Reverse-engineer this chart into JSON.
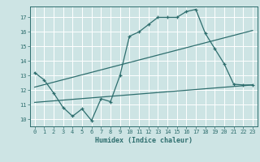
{
  "bg_color": "#cde4e4",
  "grid_color": "#ffffff",
  "line_color": "#2e6e6e",
  "xlabel": "Humidex (Indice chaleur)",
  "xlim": [
    -0.5,
    23.5
  ],
  "ylim": [
    9.5,
    17.75
  ],
  "yticks": [
    10,
    11,
    12,
    13,
    14,
    15,
    16,
    17
  ],
  "xticks": [
    0,
    1,
    2,
    3,
    4,
    5,
    6,
    7,
    8,
    9,
    10,
    11,
    12,
    13,
    14,
    15,
    16,
    17,
    18,
    19,
    20,
    21,
    22,
    23
  ],
  "curve1_x": [
    0,
    1,
    2,
    3,
    4,
    5,
    6,
    7,
    8,
    9,
    10,
    11,
    12,
    13,
    14,
    15,
    16,
    17,
    18,
    19,
    20,
    21,
    22,
    23
  ],
  "curve1_y": [
    13.2,
    12.7,
    11.8,
    10.8,
    10.2,
    10.7,
    9.9,
    11.4,
    11.2,
    13.0,
    15.7,
    16.0,
    16.5,
    17.0,
    17.0,
    17.0,
    17.4,
    17.55,
    15.9,
    14.85,
    13.8,
    12.4,
    12.35,
    12.35
  ],
  "line2_x": [
    0,
    23
  ],
  "line2_y": [
    12.2,
    16.1
  ],
  "line3_x": [
    0,
    23
  ],
  "line3_y": [
    11.15,
    12.35
  ]
}
